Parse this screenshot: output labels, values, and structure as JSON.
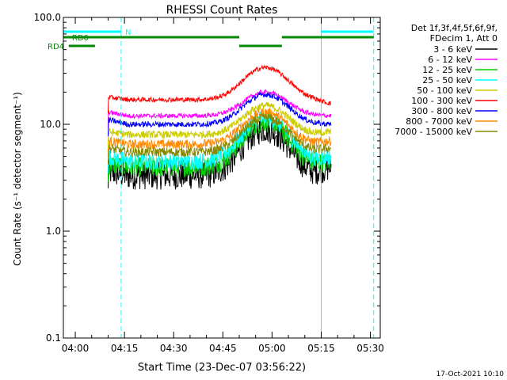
{
  "chart_data": {
    "type": "line",
    "title": "RHESSI Count Rates",
    "xlabel_prefix": "Start Time (",
    "xlabel_date": "23-Dec-07 03:56:22",
    "xlabel_suffix": ")",
    "ylabel": "Count Rate (s⁻¹ detector segment⁻¹)",
    "y_scale": "log",
    "ylim": [
      0.1,
      100.0
    ],
    "xlim": [
      "03:56:22",
      "05:33:00"
    ],
    "y_ticks": [
      {
        "value": 100.0,
        "label": "100.0"
      },
      {
        "value": 10.0,
        "label": "10.0"
      },
      {
        "value": 1.0,
        "label": "1.0"
      },
      {
        "value": 0.1,
        "label": "0.1"
      }
    ],
    "x_ticks": [
      {
        "t": "04:00",
        "label": "04:00"
      },
      {
        "t": "04:15",
        "label": "04:15"
      },
      {
        "t": "04:30",
        "label": "04:30"
      },
      {
        "t": "04:45",
        "label": "04:45"
      },
      {
        "t": "05:00",
        "label": "05:00"
      },
      {
        "t": "05:15",
        "label": "05:15"
      },
      {
        "t": "05:30",
        "label": "05:30"
      }
    ],
    "legend": {
      "placement": "right",
      "header_lines": [
        "Det 1f,3f,4f,5f,6f,9f,",
        "FDecim 1, Att 0"
      ]
    },
    "series": [
      {
        "name": "3 - 6 keV",
        "color": "#000000",
        "start": 3.6,
        "plateau": 3.3,
        "peak": 9.0,
        "end": 4.0,
        "noise": 0.3
      },
      {
        "name": "6 - 12 keV",
        "color": "#ff00ff",
        "start": 13.0,
        "plateau": 12.0,
        "peak": 20.0,
        "end": 12.0,
        "noise": 0.05
      },
      {
        "name": "12 - 25 keV",
        "color": "#00cc00",
        "start": 4.2,
        "plateau": 4.0,
        "peak": 10.5,
        "end": 4.5,
        "noise": 0.22
      },
      {
        "name": "25 - 50 keV",
        "color": "#00ffff",
        "start": 5.0,
        "plateau": 4.5,
        "peak": 11.5,
        "end": 5.0,
        "noise": 0.18
      },
      {
        "name": "50 - 100 keV",
        "color": "#cccc00",
        "start": 8.5,
        "plateau": 8.0,
        "peak": 15.0,
        "end": 8.5,
        "noise": 0.08
      },
      {
        "name": "100 - 300 keV",
        "color": "#ff0000",
        "start": 18.0,
        "plateau": 17.0,
        "peak": 34.0,
        "end": 15.5,
        "noise": 0.05
      },
      {
        "name": "300 - 800 keV",
        "color": "#0000ff",
        "start": 11.0,
        "plateau": 10.0,
        "peak": 19.0,
        "end": 10.0,
        "noise": 0.06
      },
      {
        "name": "800 - 7000 keV",
        "color": "#ff8800",
        "start": 7.0,
        "plateau": 6.5,
        "peak": 13.0,
        "end": 7.0,
        "noise": 0.1
      },
      {
        "name": "7000 - 15000 keV",
        "color": "#888800",
        "start": 6.0,
        "plateau": 5.5,
        "peak": 11.5,
        "end": 6.0,
        "noise": 0.1
      }
    ],
    "data_window": {
      "start": "04:10",
      "end": "05:18"
    },
    "flare_peak": "04:58",
    "annotations": {
      "N": {
        "label": "N",
        "color": "#00ffff",
        "bars": [
          [
            "03:56:22",
            "04:14"
          ],
          [
            "05:15",
            "05:31"
          ]
        ]
      },
      "RD0": {
        "label": "RD0",
        "color": "#008800",
        "bars": [
          [
            "03:56:22",
            "04:50"
          ],
          [
            "05:03",
            "05:31"
          ]
        ]
      },
      "RD4": {
        "label": "RD4",
        "color": "#008800",
        "bars": [
          [
            "03:58",
            "04:06"
          ],
          [
            "04:50",
            "05:03"
          ]
        ]
      },
      "vlines_solid": [
        "03:56:22",
        "05:15"
      ],
      "vlines_dashed": [
        "04:14",
        "05:31"
      ],
      "vline_color": "#00ffff"
    }
  },
  "footer": {
    "timestamp": "17-Oct-2021 10:10"
  }
}
